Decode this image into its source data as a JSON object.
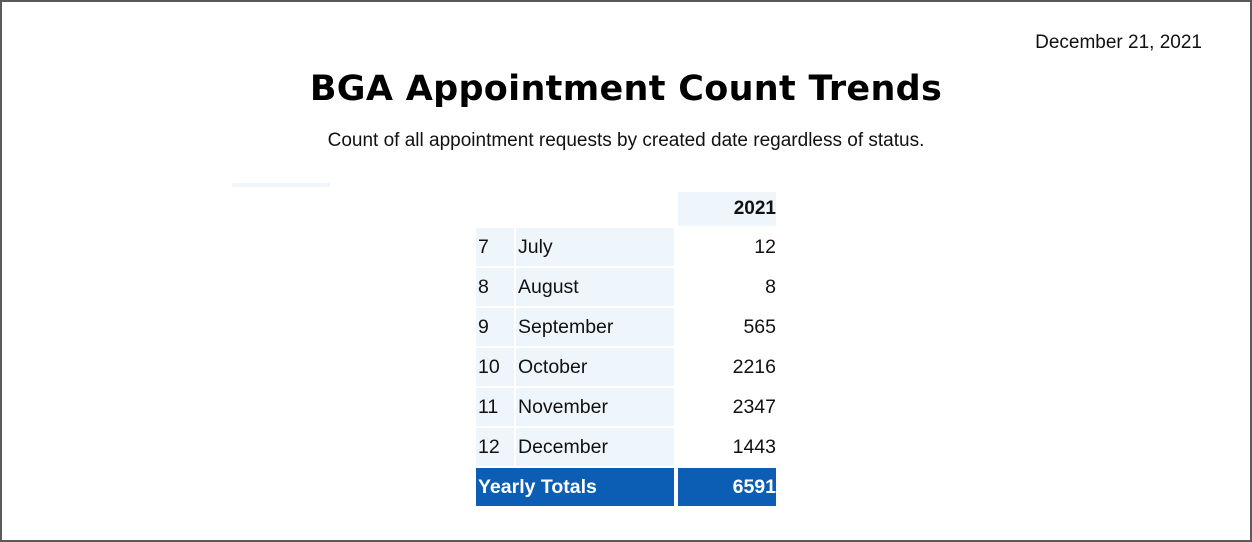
{
  "report": {
    "date": "December 21, 2021",
    "title": "BGA Appointment Count Trends",
    "subtitle": "Count of all appointment requests by created date regardless of status."
  },
  "table": {
    "year_header": "2021",
    "rows": [
      {
        "num": "7",
        "month": "July",
        "value": "12"
      },
      {
        "num": "8",
        "month": "August",
        "value": "8"
      },
      {
        "num": "9",
        "month": "September",
        "value": "565"
      },
      {
        "num": "10",
        "month": "October",
        "value": "2216"
      },
      {
        "num": "11",
        "month": "November",
        "value": "2347"
      },
      {
        "num": "12",
        "month": "December",
        "value": "1443"
      }
    ],
    "total_label": "Yearly Totals",
    "total_value": "6591"
  },
  "colors": {
    "row_band": "#eef6fc",
    "total_bg": "#0b5eb4",
    "total_text": "#ffffff"
  }
}
